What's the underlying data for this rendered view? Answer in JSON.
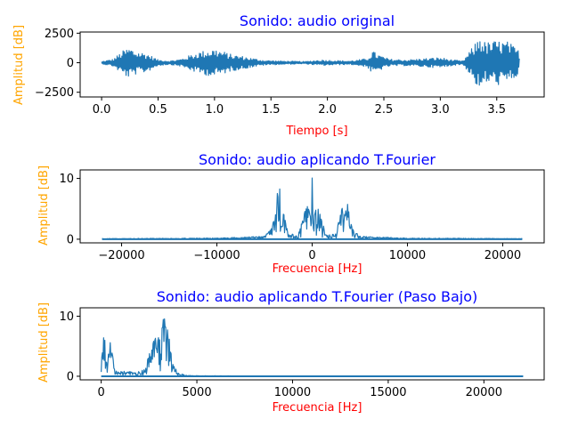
{
  "colors": {
    "series": "#1f77b4",
    "title": "#0000ff",
    "xlabel": "#ff0000",
    "ylabel": "#ffa500"
  },
  "chart_data": [
    {
      "type": "line",
      "title": "Sonido: audio original",
      "xlabel": "Tiempo [s]",
      "ylabel": "Amplitud [dB]",
      "xlim": [
        -0.19,
        3.92
      ],
      "ylim": [
        -2900,
        2600
      ],
      "xticks": [
        0.0,
        0.5,
        1.0,
        1.5,
        2.0,
        2.5,
        3.0,
        3.5
      ],
      "xtick_labels": [
        "0.0",
        "0.5",
        "1.0",
        "1.5",
        "2.0",
        "2.5",
        "3.0",
        "3.5"
      ],
      "yticks": [
        -2500,
        0,
        2500
      ],
      "ytick_labels": [
        "−2500",
        "0",
        "2500"
      ],
      "grid": false,
      "series": [
        {
          "x": [
            0.0,
            0.1,
            0.2,
            0.25,
            0.3,
            0.4,
            0.5,
            0.6,
            0.7,
            0.85,
            0.95,
            1.0,
            1.05,
            1.15,
            1.25,
            1.35,
            1.45,
            1.6,
            1.8,
            1.95,
            2.05,
            2.2,
            2.35,
            2.4,
            2.45,
            2.55,
            2.7,
            2.85,
            3.0,
            3.1,
            3.2,
            3.3,
            3.35,
            3.4,
            3.5,
            3.6,
            3.7
          ],
          "y_max": [
            100,
            300,
            1100,
            1300,
            1000,
            800,
            250,
            150,
            300,
            900,
            1100,
            1200,
            1050,
            700,
            550,
            350,
            200,
            150,
            100,
            250,
            200,
            150,
            350,
            1000,
            700,
            300,
            250,
            350,
            450,
            250,
            150,
            1500,
            2400,
            1700,
            1900,
            1800,
            1000
          ],
          "y_min": [
            -100,
            -300,
            -1100,
            -1300,
            -1000,
            -800,
            -250,
            -150,
            -300,
            -900,
            -1100,
            -1200,
            -1050,
            -700,
            -550,
            -350,
            -200,
            -150,
            -100,
            -250,
            -200,
            -150,
            -350,
            -1000,
            -700,
            -300,
            -250,
            -350,
            -450,
            -250,
            -150,
            -1500,
            -2700,
            -1700,
            -1900,
            -1800,
            -1000
          ]
        }
      ]
    },
    {
      "type": "line",
      "title": "Sonido: audio aplicando T.Fourier",
      "xlabel": "Frecuencia [Hz]",
      "ylabel": "Amplitud [dB]",
      "xlim": [
        -24350,
        24350
      ],
      "ylim": [
        -0.6,
        11.4
      ],
      "xticks": [
        -20000,
        -10000,
        0,
        10000,
        20000
      ],
      "xtick_labels": [
        "−20000",
        "−10000",
        "0",
        "10000",
        "20000"
      ],
      "yticks": [
        0,
        10
      ],
      "ytick_labels": [
        "0",
        "10"
      ],
      "grid": false,
      "series": [
        {
          "x": [
            -22050,
            -10000,
            -5000,
            -4200,
            -3800,
            -3500,
            -3300,
            -3000,
            -2500,
            -1500,
            -600,
            -400,
            -200,
            0,
            200,
            400,
            600,
            1500,
            2500,
            3000,
            3300,
            3500,
            3800,
            4200,
            5000,
            10000,
            22050
          ],
          "y_max": [
            0.1,
            0.2,
            0.5,
            2.0,
            5.0,
            10.6,
            6.5,
            4.5,
            1.0,
            0.6,
            5.5,
            5.8,
            4.0,
            10.8,
            4.0,
            5.8,
            5.5,
            0.6,
            1.0,
            4.5,
            6.5,
            10.6,
            5.0,
            2.0,
            0.5,
            0.2,
            0.1
          ]
        }
      ]
    },
    {
      "type": "line",
      "title": "Sonido: audio aplicando T.Fourier (Paso Bajo)",
      "xlabel": "Frecuencia [Hz]",
      "ylabel": "Amplitud [dB]",
      "xlim": [
        -1100,
        23150
      ],
      "ylim": [
        -0.6,
        11.4
      ],
      "xticks": [
        0,
        5000,
        10000,
        15000,
        20000
      ],
      "xtick_labels": [
        "0",
        "5000",
        "10000",
        "15000",
        "20000"
      ],
      "yticks": [
        0,
        10
      ],
      "ytick_labels": [
        "0",
        "10"
      ],
      "grid": false,
      "series": [
        {
          "x": [
            0,
            60,
            150,
            300,
            450,
            500,
            700,
            900,
            1200,
            1800,
            2300,
            2600,
            2900,
            3100,
            3250,
            3500,
            3700,
            4000,
            4500,
            5000,
            8000,
            22050
          ],
          "y_max": [
            1.0,
            10.5,
            7.5,
            2.0,
            5.5,
            5.8,
            1.2,
            0.7,
            1.0,
            0.6,
            1.2,
            5.5,
            7.0,
            6.5,
            10.3,
            8.0,
            2.5,
            0.6,
            0.2,
            0.1,
            0.05,
            0.05
          ]
        }
      ]
    }
  ]
}
